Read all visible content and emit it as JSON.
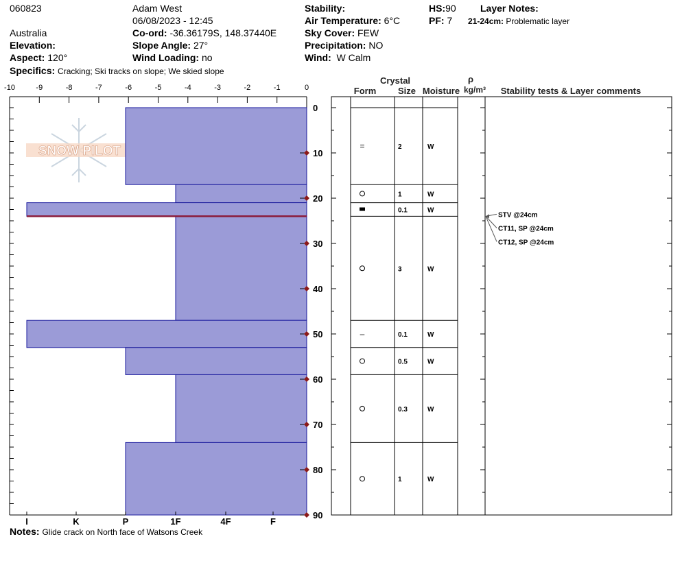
{
  "header": {
    "id": "060823",
    "observer": "Adam West",
    "datetime": "06/08/2023 - 12:45",
    "location": "Australia",
    "elevation_label": "Elevation:",
    "elevation_value": "",
    "aspect_label": "Aspect:",
    "aspect_value": "120°",
    "coord_label": "Co-ord:",
    "coord_value": "-36.36179S, 148.37440E",
    "slope_label": "Slope Angle:",
    "slope_value": "27°",
    "wind_loading_label": "Wind Loading:",
    "wind_loading_value": "no",
    "stability_label": "Stability:",
    "stability_value": "",
    "air_temp_label": "Air Temperature:",
    "air_temp_value": "6°C",
    "sky_label": "Sky Cover:",
    "sky_value": "FEW",
    "precip_label": "Precipitation:",
    "precip_value": "NO",
    "wind_label": "Wind:",
    "wind_value": "W Calm",
    "hs_label": "HS:",
    "hs_value": "90",
    "pf_label": "PF:",
    "pf_value": "7",
    "layer_notes_label": "Layer Notes:",
    "layer_note_range": "21-24cm:",
    "layer_note_text": "Problematic layer",
    "specifics_label": "Specifics:",
    "specifics_value": "Cracking;  Ski tracks on slope;  We skied slope",
    "notes_label": "Notes:",
    "notes_value": "Glide crack on North face of Watsons Creek"
  },
  "logo": {
    "text": "SNOW PILOT"
  },
  "table": {
    "crystal_label": "Crystal",
    "form_label": "Form",
    "size_label": "Size",
    "moisture_label": "Moisture",
    "density_symbol": "ρ",
    "density_unit": "kg/m³",
    "comments_label": "Stability tests & Layer comments"
  },
  "colors": {
    "bar_fill": "#9b9bd7",
    "bar_stroke": "#1a1a9c",
    "marker": "#8b1a1a",
    "problem_line": "#8b1a3a"
  },
  "chart_data": {
    "type": "bar",
    "orientation": "horizontal",
    "depth_range": [
      0,
      90
    ],
    "depth_ticks": [
      0,
      10,
      20,
      30,
      40,
      50,
      60,
      70,
      80,
      90
    ],
    "top_axis_ticks": [
      -10,
      -9,
      -8,
      -7,
      -6,
      -5,
      -4,
      -3,
      -2,
      -1,
      0
    ],
    "hardness_labels": [
      "I",
      "K",
      "P",
      "1F",
      "4F",
      "F"
    ],
    "temperature_markers": [
      10,
      20,
      30,
      40,
      50,
      60,
      70,
      80,
      90
    ],
    "problem_layer_depth": 24,
    "layers": [
      {
        "top": 0,
        "bottom": 17,
        "hardness": "P",
        "form": "=",
        "size": "2",
        "moisture": "W"
      },
      {
        "top": 17,
        "bottom": 21,
        "hardness": "1F",
        "form": "○",
        "size": "1",
        "moisture": "W"
      },
      {
        "top": 21,
        "bottom": 24,
        "hardness": "I",
        "form": "■",
        "size": "0.1",
        "moisture": "W"
      },
      {
        "top": 24,
        "bottom": 47,
        "hardness": "1F",
        "form": "○",
        "size": "3",
        "moisture": "W"
      },
      {
        "top": 47,
        "bottom": 53,
        "hardness": "I",
        "form": "–",
        "size": "0.1",
        "moisture": "W"
      },
      {
        "top": 53,
        "bottom": 59,
        "hardness": "P",
        "form": "○",
        "size": "0.5",
        "moisture": "W"
      },
      {
        "top": 59,
        "bottom": 74,
        "hardness": "1F",
        "form": "○",
        "size": "0.3",
        "moisture": "W"
      },
      {
        "top": 74,
        "bottom": 90,
        "hardness": "P",
        "form": "○",
        "size": "1",
        "moisture": "W"
      }
    ],
    "stability_tests": [
      "STV @24cm",
      "CT11, SP @24cm",
      "CT12, SP @24cm"
    ]
  }
}
